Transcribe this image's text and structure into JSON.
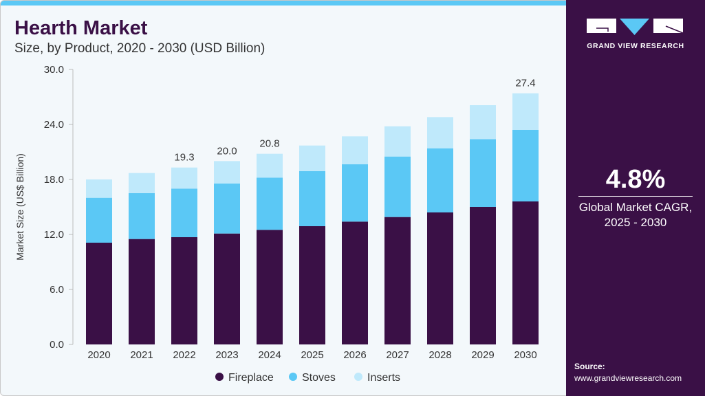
{
  "header": {
    "title": "Hearth Market",
    "subtitle": "Size, by Product, 2020 - 2030 (USD Billion)"
  },
  "sidebar": {
    "logo_text": "GRAND VIEW RESEARCH",
    "cagr_value": "4.8%",
    "cagr_label_1": "Global Market CAGR,",
    "cagr_label_2": "2025 - 2030",
    "source_label": "Source:",
    "source_url": "www.grandviewresearch.com"
  },
  "colors": {
    "accent": "#5bc8f5",
    "brand": "#3a1046",
    "fireplace": "#3a1046",
    "stoves": "#5bc8f5",
    "inserts": "#bfe9fb"
  },
  "chart_data": {
    "type": "bar",
    "stacked": true,
    "ylabel": "Market Size (US$ Billion)",
    "xlabel": "",
    "ylim": [
      0,
      30
    ],
    "yticks": [
      "0.0",
      "6.0",
      "12.0",
      "18.0",
      "24.0",
      "30.0"
    ],
    "grid": false,
    "legend_position": "bottom",
    "categories": [
      "2020",
      "2021",
      "2022",
      "2023",
      "2024",
      "2025",
      "2026",
      "2027",
      "2028",
      "2029",
      "2030"
    ],
    "series": [
      {
        "name": "Fireplace",
        "values": [
          11.1,
          11.5,
          11.7,
          12.1,
          12.5,
          12.9,
          13.4,
          13.9,
          14.4,
          15.0,
          15.6
        ]
      },
      {
        "name": "Stoves",
        "values": [
          4.9,
          5.0,
          5.3,
          5.45,
          5.7,
          6.0,
          6.25,
          6.6,
          7.0,
          7.4,
          7.8
        ]
      },
      {
        "name": "Inserts",
        "values": [
          2.0,
          2.2,
          2.3,
          2.45,
          2.6,
          2.8,
          3.05,
          3.3,
          3.4,
          3.7,
          4.0
        ]
      }
    ],
    "total_labels": {
      "2022": "19.3",
      "2023": "20.0",
      "2024": "20.8",
      "2030": "27.4"
    }
  }
}
